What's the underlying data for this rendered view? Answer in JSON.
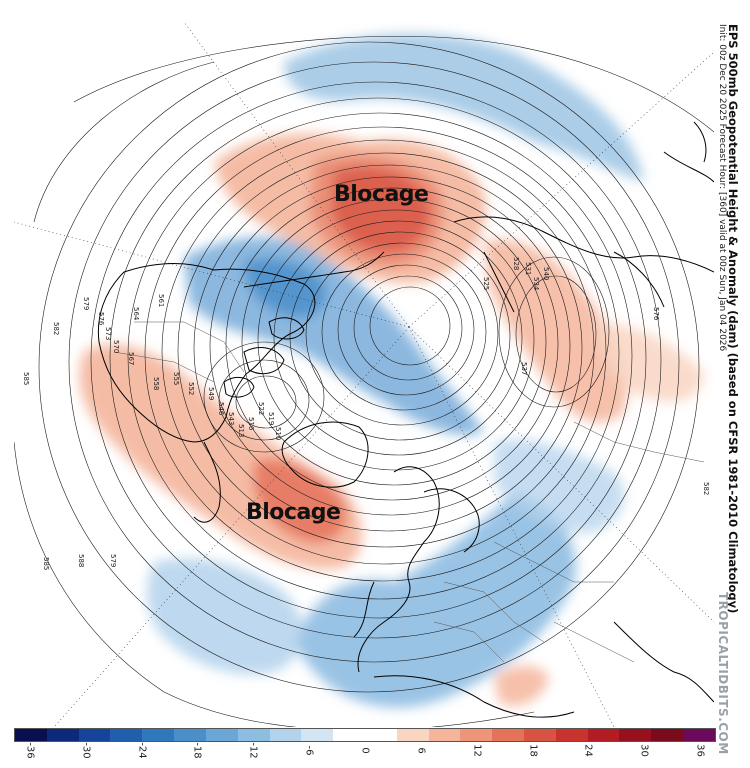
{
  "title": "EPS 500mb Geopotential Height & Anomaly (dam) (based on CFSR 1981-2010 Climatology)",
  "subtitle": "Init: 00z Dec 20 2025   Forecast Hour: [360]   valid at 00z Sun, Jan 04 2026",
  "brand": "TROPICALTIDBITS.COM",
  "annotations": {
    "top": "Blocage",
    "bottom": "Blocage"
  },
  "colorbar": {
    "colors": [
      "#08104f",
      "#0d2a7a",
      "#15449a",
      "#1f5fae",
      "#2f78bd",
      "#4a8fca",
      "#6aa6d6",
      "#8ebde2",
      "#b3d2ec",
      "#d3e4f3",
      "#ffffff",
      "#ffffff",
      "#f9d5c2",
      "#f4b59b",
      "#ee9579",
      "#e5735a",
      "#d85341",
      "#c8342d",
      "#b21c22",
      "#96101d",
      "#7a0a1c",
      "#6b0a5a"
    ],
    "labels": [
      "-36",
      "-30",
      "-24",
      "-18",
      "-12",
      "-6",
      "0",
      "6",
      "12",
      "18",
      "24",
      "30",
      "36"
    ]
  },
  "contour_labels": [
    "582",
    "579",
    "576",
    "573",
    "570",
    "567",
    "564",
    "561",
    "558",
    "555",
    "552",
    "549",
    "546",
    "543",
    "540",
    "537",
    "534",
    "531",
    "528",
    "525",
    "522",
    "519",
    "516",
    "513",
    "510",
    "582",
    "585",
    "588",
    "585",
    "579",
    "576"
  ]
}
